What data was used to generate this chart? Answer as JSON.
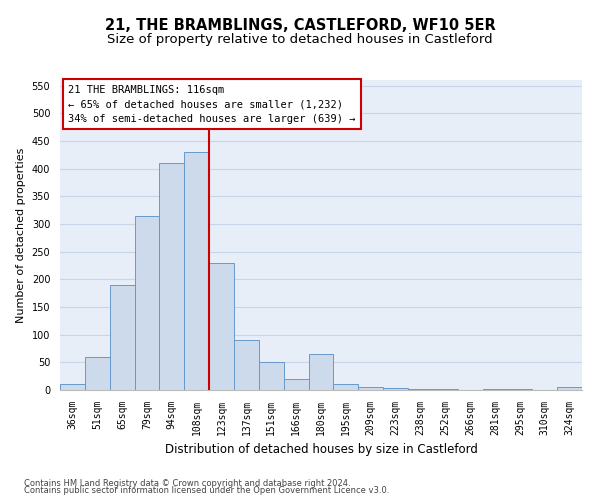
{
  "title": "21, THE BRAMBLINGS, CASTLEFORD, WF10 5ER",
  "subtitle": "Size of property relative to detached houses in Castleford",
  "xlabel": "Distribution of detached houses by size in Castleford",
  "ylabel": "Number of detached properties",
  "categories": [
    "36sqm",
    "51sqm",
    "65sqm",
    "79sqm",
    "94sqm",
    "108sqm",
    "123sqm",
    "137sqm",
    "151sqm",
    "166sqm",
    "180sqm",
    "195sqm",
    "209sqm",
    "223sqm",
    "238sqm",
    "252sqm",
    "266sqm",
    "281sqm",
    "295sqm",
    "310sqm",
    "324sqm"
  ],
  "bar_heights": [
    10,
    60,
    190,
    315,
    410,
    430,
    230,
    90,
    50,
    20,
    65,
    10,
    5,
    3,
    2,
    1,
    0,
    1,
    1,
    0,
    5
  ],
  "bar_color": "#cddaeb",
  "bar_edge_color": "#6699cc",
  "vline_x": 5.5,
  "vline_color": "#cc0000",
  "annotation_line1": "21 THE BRAMBLINGS: 116sqm",
  "annotation_line2": "← 65% of detached houses are smaller (1,232)",
  "annotation_line3": "34% of semi-detached houses are larger (639) →",
  "annotation_box_facecolor": "#ffffff",
  "annotation_box_edgecolor": "#cc0000",
  "ylim": [
    0,
    560
  ],
  "yticks": [
    0,
    50,
    100,
    150,
    200,
    250,
    300,
    350,
    400,
    450,
    500,
    550
  ],
  "grid_color": "#c8d4e8",
  "background_color": "#e8eef8",
  "footer_line1": "Contains HM Land Registry data © Crown copyright and database right 2024.",
  "footer_line2": "Contains public sector information licensed under the Open Government Licence v3.0.",
  "title_fontsize": 10.5,
  "subtitle_fontsize": 9.5,
  "annotation_fontsize": 7.5,
  "tick_fontsize": 7,
  "ylabel_fontsize": 8,
  "xlabel_fontsize": 8.5,
  "footer_fontsize": 6
}
